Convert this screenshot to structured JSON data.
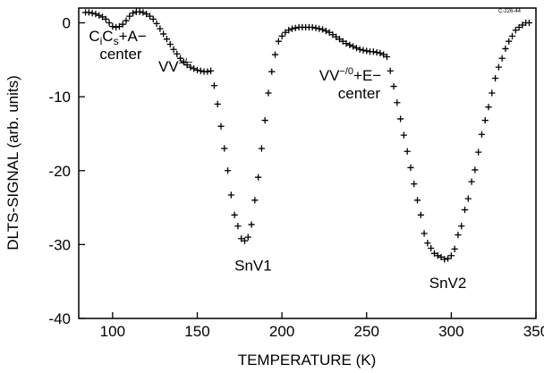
{
  "chart_data": {
    "type": "scatter",
    "xlabel": "TEMPERATURE  (K)",
    "ylabel": "DLTS-SIGNAL  (arb. units)",
    "xlim": [
      80,
      350
    ],
    "ylim": [
      -40,
      2
    ],
    "xticks": [
      100,
      150,
      200,
      250,
      300,
      350
    ],
    "yticks": [
      0,
      -10,
      -20,
      -30,
      -40
    ],
    "corner_code": "C-226-44",
    "annotations": [
      {
        "id": "cics",
        "base": "C",
        "sub1": "i",
        "mid": "C",
        "sub2": "s",
        "tail": "+A−",
        "line2": "center",
        "x": 86,
        "y": -2.5
      },
      {
        "id": "vv",
        "base": "VV",
        "sup": "=/−",
        "x": 127,
        "y": -6.6
      },
      {
        "id": "vve",
        "base": "VV",
        "sup": "−/0",
        "tail": "+E−",
        "line2": "center",
        "x": 222,
        "y": -7.8
      },
      {
        "id": "snv1",
        "text": "SnV1",
        "x": 172,
        "y": -33.5
      },
      {
        "id": "snv2",
        "text": "SnV2",
        "x": 287,
        "y": -35.9
      }
    ],
    "series": [
      {
        "x": [
          84,
          86,
          88,
          90,
          92,
          94,
          96,
          98,
          100,
          102,
          104,
          106,
          108,
          110,
          112,
          114,
          116,
          118,
          120,
          122,
          124,
          126,
          128,
          130,
          132,
          134,
          136,
          138,
          140,
          142,
          144,
          146,
          148,
          150,
          152,
          154,
          156,
          158,
          160,
          162,
          164,
          166,
          168,
          170,
          172,
          174,
          176,
          178,
          180,
          182,
          184,
          186,
          188,
          190,
          192,
          194,
          196,
          198,
          200,
          202,
          204,
          206,
          208,
          210,
          212,
          214,
          216,
          218,
          220,
          222,
          224,
          226,
          228,
          230,
          232,
          234,
          236,
          238,
          240,
          242,
          244,
          246,
          248,
          250,
          252,
          254,
          256,
          258,
          260,
          262,
          264,
          266,
          268,
          270,
          272,
          274,
          276,
          278,
          280,
          282,
          284,
          286,
          288,
          290,
          292,
          294,
          296,
          298,
          300,
          302,
          304,
          306,
          308,
          310,
          312,
          314,
          316,
          318,
          320,
          322,
          324,
          326,
          328,
          330,
          332,
          334,
          336,
          338,
          340,
          342,
          344,
          346
        ],
        "y": [
          1.4,
          1.4,
          1.3,
          1.2,
          1,
          0.8,
          0.5,
          0,
          -0.5,
          -0.6,
          -0.5,
          -0.2,
          0.3,
          0.9,
          1.3,
          1.5,
          1.5,
          1.4,
          1.2,
          0.9,
          0.5,
          -0.1,
          -0.8,
          -1.5,
          -2.2,
          -2.9,
          -3.6,
          -4.2,
          -4.8,
          -5.3,
          -5.7,
          -6,
          -6.2,
          -6.4,
          -6.5,
          -6.6,
          -6.6,
          -6.5,
          -8.5,
          -11,
          -14,
          -17,
          -20,
          -23.3,
          -26,
          -27.5,
          -29.2,
          -29.5,
          -29,
          -27.3,
          -24,
          -20.9,
          -17,
          -13.2,
          -9.5,
          -6.6,
          -4.3,
          -2.5,
          -1.8,
          -1.3,
          -1,
          -0.8,
          -0.7,
          -0.6,
          -0.6,
          -0.6,
          -0.6,
          -0.6,
          -0.7,
          -0.8,
          -0.9,
          -1.1,
          -1.3,
          -1.6,
          -1.9,
          -2.2,
          -2.5,
          -2.8,
          -3,
          -3.2,
          -3.4,
          -3.6,
          -3.7,
          -3.8,
          -3.9,
          -3.9,
          -4,
          -4.1,
          -4.3,
          -4.6,
          -6.5,
          -8.6,
          -10.8,
          -13,
          -15.2,
          -17.4,
          -19.6,
          -21.8,
          -24,
          -26,
          -28.5,
          -29.8,
          -30.5,
          -31.2,
          -31.5,
          -31.7,
          -32,
          -31.9,
          -31.5,
          -30.6,
          -28.7,
          -27.5,
          -25.3,
          -23.8,
          -21.5,
          -19.9,
          -17.5,
          -15.1,
          -13.2,
          -11.4,
          -9.5,
          -7.5,
          -6,
          -4.8,
          -3.5,
          -2.5,
          -1.8,
          -1,
          -0.6,
          -0.3,
          0,
          0
        ]
      }
    ]
  }
}
